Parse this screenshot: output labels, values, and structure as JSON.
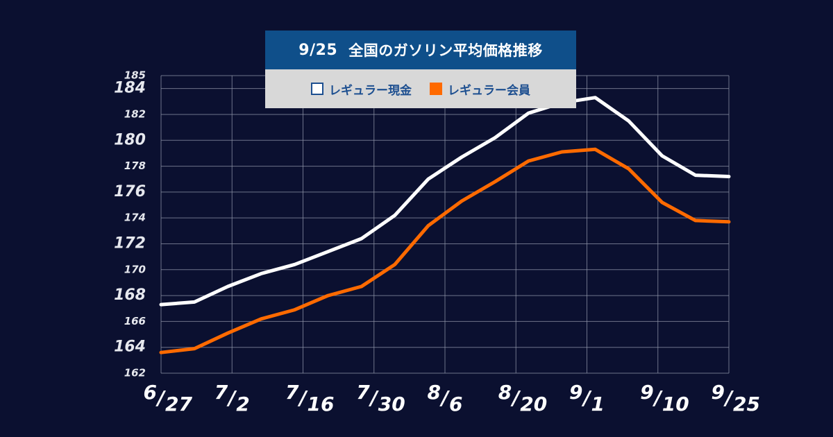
{
  "title": {
    "date": "9/25",
    "text": "全国のガソリン平均価格推移"
  },
  "legend": [
    {
      "label": "レギュラー現金",
      "color": "#ffffff"
    },
    {
      "label": "レギュラー会員",
      "color": "#ff6a00"
    }
  ],
  "chart_data": {
    "type": "line",
    "title": "9/25 全国のガソリン平均価格推移",
    "ylim": [
      162,
      185
    ],
    "y_ticks": [
      {
        "value": 162,
        "label": "162",
        "major": false
      },
      {
        "value": 164,
        "label": "164",
        "major": true
      },
      {
        "value": 166,
        "label": "166",
        "major": false
      },
      {
        "value": 168,
        "label": "168",
        "major": true
      },
      {
        "value": 170,
        "label": "170",
        "major": false
      },
      {
        "value": 172,
        "label": "172",
        "major": true
      },
      {
        "value": 174,
        "label": "174",
        "major": false
      },
      {
        "value": 176,
        "label": "176",
        "major": true
      },
      {
        "value": 178,
        "label": "178",
        "major": false
      },
      {
        "value": 180,
        "label": "180",
        "major": true
      },
      {
        "value": 182,
        "label": "182",
        "major": false
      },
      {
        "value": 184,
        "label": "184",
        "major": true
      },
      {
        "value": 185,
        "label": "185",
        "major": false
      }
    ],
    "x_ticks": [
      {
        "month": "6",
        "day": "27"
      },
      {
        "month": "7",
        "day": "2"
      },
      {
        "month": "7",
        "day": "16"
      },
      {
        "month": "7",
        "day": "30"
      },
      {
        "month": "8",
        "day": "6"
      },
      {
        "month": "8",
        "day": "20"
      },
      {
        "month": "9",
        "day": "1"
      },
      {
        "month": "9",
        "day": "10"
      },
      {
        "month": "9",
        "day": "25"
      }
    ],
    "grid": true,
    "series": [
      {
        "name": "レギュラー現金",
        "color": "#ffffff",
        "values": [
          167.3,
          167.5,
          168.7,
          169.7,
          170.4,
          171.4,
          172.4,
          174.2,
          177.0,
          178.7,
          180.2,
          182.1,
          182.9,
          183.3,
          181.5,
          178.8,
          177.3,
          177.2
        ]
      },
      {
        "name": "レギュラー会員",
        "color": "#ff6a00",
        "values": [
          163.6,
          163.9,
          165.1,
          166.2,
          166.9,
          168.0,
          168.7,
          170.4,
          173.4,
          175.3,
          176.8,
          178.4,
          179.1,
          179.3,
          177.8,
          175.2,
          173.8,
          173.7
        ]
      }
    ]
  }
}
